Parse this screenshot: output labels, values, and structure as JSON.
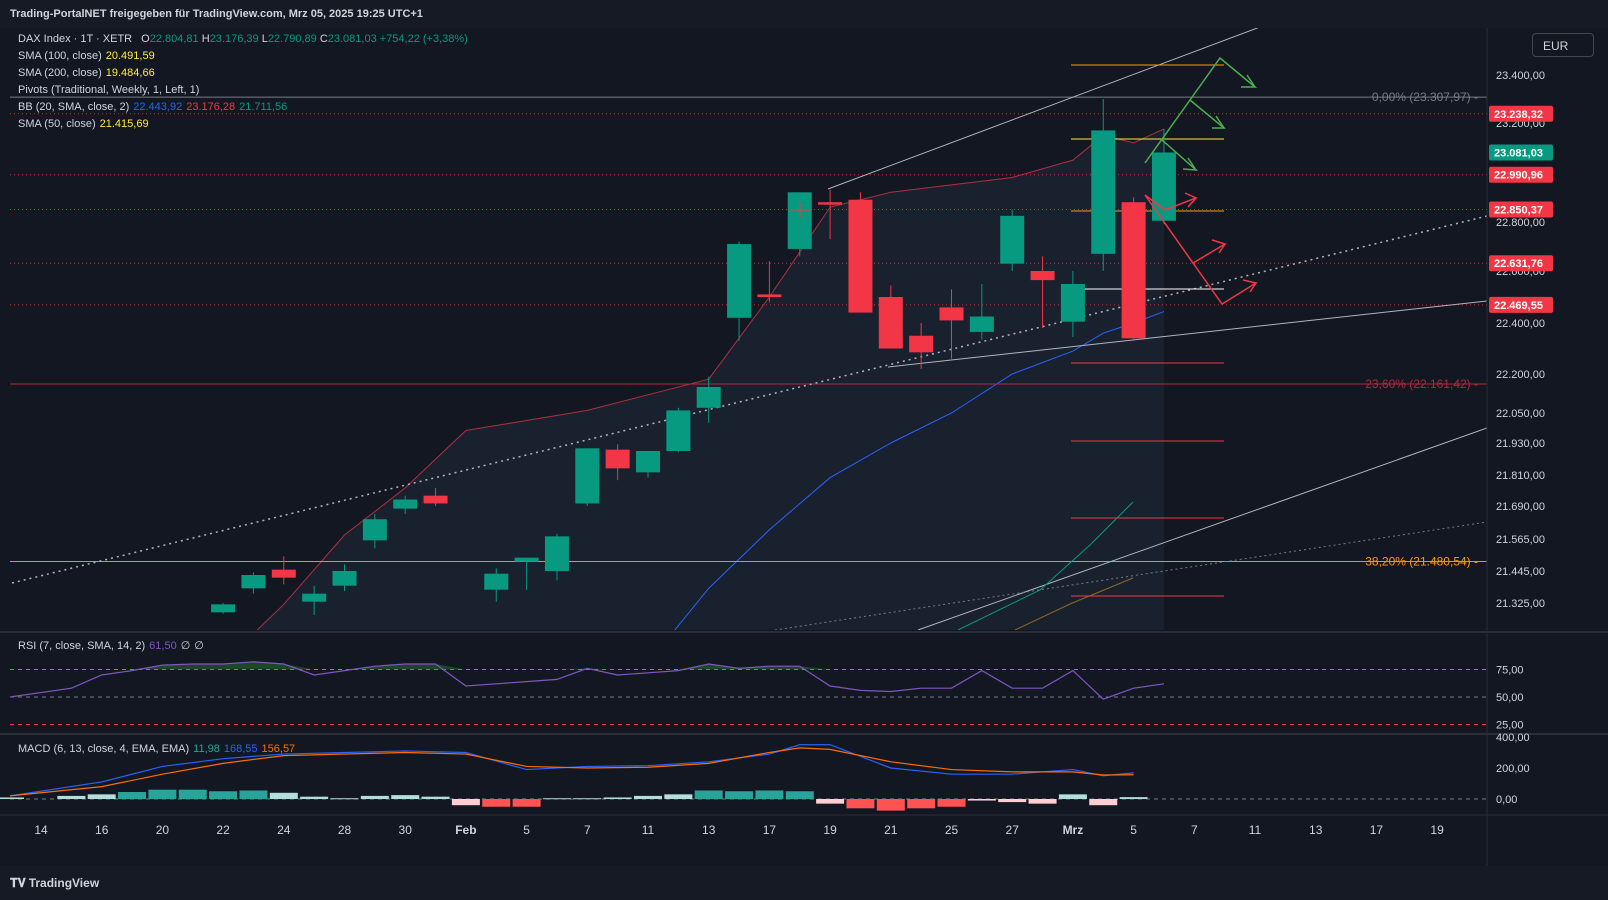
{
  "header": {
    "share_text": "Trading-PortalNET freigegeben für TradingView.com, Mrz 05, 2025 19:25 UTC+1"
  },
  "footer": {
    "brand": "TradingView"
  },
  "toolbar": {
    "currency": "EUR"
  },
  "legend": {
    "symbol": "DAX Index · 1T · XETR",
    "ohlc": {
      "o_label": "O",
      "o": "22.804,81",
      "h_label": "H",
      "h": "23.176,39",
      "l_label": "L",
      "l": "22.790,89",
      "c_label": "C",
      "c": "23.081,03",
      "change": "+754,22 (+3,38%)"
    },
    "sma100": {
      "label": "SMA (100, close)",
      "value": "20.491,59"
    },
    "sma200": {
      "label": "SMA (200, close)",
      "value": "19.484,66"
    },
    "pivots": {
      "label": "Pivots (Traditional, Weekly, 1, Left, 1)"
    },
    "bb": {
      "label": "BB (20, SMA, close, 2)",
      "basis": "22.443,92",
      "upper": "23.176,28",
      "lower": "21.711,56"
    },
    "sma50": {
      "label": "SMA (50, close)",
      "value": "21.415,69"
    }
  },
  "rsi_legend": {
    "label": "RSI (7, close, SMA, 14, 2)",
    "value": "61,50",
    "e1": "∅",
    "e2": "∅"
  },
  "macd_legend": {
    "label": "MACD (6, 13, close, 4, EMA, EMA)",
    "hist": "11,98",
    "macd": "168,55",
    "signal": "156,57"
  },
  "colors": {
    "up": "#089981",
    "down": "#f23645",
    "bg": "#131722",
    "grid": "#1e222d",
    "bb": "#b03040",
    "sma50": "#2962ff",
    "fib236": "#b2283a",
    "fib382": "#ff9800",
    "rsi": "#7e57c2",
    "macd": "#2962ff",
    "signal": "#ff6d00"
  },
  "chart_data": {
    "type": "candlestick",
    "x_ticks": [
      {
        "i": 0,
        "label": "14"
      },
      {
        "i": 2,
        "label": "16"
      },
      {
        "i": 4,
        "label": "20"
      },
      {
        "i": 6,
        "label": "22"
      },
      {
        "i": 8,
        "label": "24"
      },
      {
        "i": 10,
        "label": "28"
      },
      {
        "i": 12,
        "label": "30"
      },
      {
        "i": 14,
        "label": "Feb"
      },
      {
        "i": 16,
        "label": "5"
      },
      {
        "i": 18,
        "label": "7"
      },
      {
        "i": 20,
        "label": "11"
      },
      {
        "i": 22,
        "label": "13"
      },
      {
        "i": 24,
        "label": "17"
      },
      {
        "i": 26,
        "label": "19"
      },
      {
        "i": 28,
        "label": "21"
      },
      {
        "i": 30,
        "label": "25"
      },
      {
        "i": 32,
        "label": "27"
      },
      {
        "i": 34,
        "label": "Mrz"
      },
      {
        "i": 36,
        "label": "5"
      },
      {
        "i": 38,
        "label": "7"
      },
      {
        "i": 40,
        "label": "11"
      },
      {
        "i": 42,
        "label": "13"
      },
      {
        "i": 44,
        "label": "17"
      },
      {
        "i": 46,
        "label": "19"
      }
    ],
    "y_ticks": [
      "23.400,00",
      "23.200,00",
      "22.800,00",
      "22.600,00",
      "22.400,00",
      "22.200,00",
      "22.050,00",
      "21.930,00",
      "21.810,00",
      "21.690,00",
      "21.565,00",
      "21.445,00",
      "21.325,00"
    ],
    "y_tick_values": [
      23400,
      23200,
      22800,
      22600,
      22400,
      22200,
      22050,
      21930,
      21810,
      21690,
      21565,
      21445,
      21325
    ],
    "candles": [
      {
        "i": 6,
        "o": 21290,
        "h": 21325,
        "l": 21285,
        "c": 21320
      },
      {
        "i": 7,
        "o": 21380,
        "h": 21440,
        "l": 21360,
        "c": 21430
      },
      {
        "i": 8,
        "o": 21450,
        "h": 21500,
        "l": 21395,
        "c": 21420
      },
      {
        "i": 9,
        "o": 21330,
        "h": 21390,
        "l": 21280,
        "c": 21360
      },
      {
        "i": 10,
        "o": 21390,
        "h": 21470,
        "l": 21370,
        "c": 21445
      },
      {
        "i": 11,
        "o": 21560,
        "h": 21660,
        "l": 21530,
        "c": 21640
      },
      {
        "i": 12,
        "o": 21680,
        "h": 21730,
        "l": 21660,
        "c": 21715
      },
      {
        "i": 13,
        "o": 21730,
        "h": 21760,
        "l": 21690,
        "c": 21700
      },
      {
        "i": 15,
        "o": 21375,
        "h": 21455,
        "l": 21330,
        "c": 21435
      },
      {
        "i": 16,
        "o": 21480,
        "h": 21495,
        "l": 21375,
        "c": 21495
      },
      {
        "i": 17,
        "o": 21445,
        "h": 21585,
        "l": 21410,
        "c": 21575
      },
      {
        "i": 18,
        "o": 21700,
        "h": 21910,
        "l": 21690,
        "c": 21910
      },
      {
        "i": 19,
        "o": 21905,
        "h": 21925,
        "l": 21790,
        "c": 21835
      },
      {
        "i": 20,
        "o": 21820,
        "h": 21900,
        "l": 21800,
        "c": 21900
      },
      {
        "i": 21,
        "o": 21900,
        "h": 22070,
        "l": 21895,
        "c": 22060
      },
      {
        "i": 22,
        "o": 22070,
        "h": 22190,
        "l": 22010,
        "c": 22150
      },
      {
        "i": 23,
        "o": 22420,
        "h": 22720,
        "l": 22330,
        "c": 22710
      },
      {
        "i": 24,
        "o": 22510,
        "h": 22640,
        "l": 22480,
        "c": 22500
      },
      {
        "i": 25,
        "o": 22690,
        "h": 22920,
        "l": 22660,
        "c": 22920
      },
      {
        "i": 26,
        "o": 22880,
        "h": 22930,
        "l": 22730,
        "c": 22870
      },
      {
        "i": 27,
        "o": 22890,
        "h": 22920,
        "l": 22440,
        "c": 22440
      },
      {
        "i": 28,
        "o": 22500,
        "h": 22545,
        "l": 22300,
        "c": 22300
      },
      {
        "i": 29,
        "o": 22350,
        "h": 22400,
        "l": 22220,
        "c": 22285
      },
      {
        "i": 30,
        "o": 22460,
        "h": 22530,
        "l": 22260,
        "c": 22410
      },
      {
        "i": 31,
        "o": 22365,
        "h": 22550,
        "l": 22335,
        "c": 22425
      },
      {
        "i": 32,
        "o": 22630,
        "h": 22850,
        "l": 22600,
        "c": 22825
      },
      {
        "i": 33,
        "o": 22600,
        "h": 22660,
        "l": 22380,
        "c": 22565
      },
      {
        "i": 34,
        "o": 22405,
        "h": 22600,
        "l": 22345,
        "c": 22550
      },
      {
        "i": 35,
        "o": 22670,
        "h": 23300,
        "l": 22600,
        "c": 23170
      },
      {
        "i": 36,
        "o": 22880,
        "h": 22900,
        "l": 22330,
        "c": 22340
      },
      {
        "i": 37,
        "o": 22805,
        "h": 23176,
        "l": 22791,
        "c": 23081
      }
    ],
    "bb_upper": [
      [
        0,
        20700
      ],
      [
        2,
        20800
      ],
      [
        4,
        20950
      ],
      [
        6,
        21100
      ],
      [
        8,
        21320
      ],
      [
        10,
        21580
      ],
      [
        12,
        21760
      ],
      [
        14,
        21980
      ],
      [
        16,
        22020
      ],
      [
        18,
        22060
      ],
      [
        20,
        22120
      ],
      [
        22,
        22180
      ],
      [
        24,
        22500
      ],
      [
        26,
        22860
      ],
      [
        28,
        22920
      ],
      [
        30,
        22950
      ],
      [
        32,
        22980
      ],
      [
        34,
        23050
      ],
      [
        35,
        23150
      ],
      [
        36,
        23120
      ],
      [
        37,
        23176
      ]
    ],
    "bb_basis": [
      [
        18,
        20800
      ],
      [
        20,
        21100
      ],
      [
        22,
        21380
      ],
      [
        24,
        21600
      ],
      [
        26,
        21800
      ],
      [
        28,
        21930
      ],
      [
        30,
        22050
      ],
      [
        32,
        22200
      ],
      [
        34,
        22290
      ],
      [
        35,
        22360
      ],
      [
        36,
        22400
      ],
      [
        37,
        22444
      ]
    ],
    "price_labels": [
      {
        "text": "23.238,32",
        "value": 23238.32,
        "bg": "#f23645"
      },
      {
        "text": "23.081,03",
        "value": 23081.03,
        "bg": "#089981"
      },
      {
        "text": "22.990,96",
        "value": 22990.96,
        "bg": "#f23645"
      },
      {
        "text": "22.850,37",
        "value": 22850.37,
        "bg": "#f23645"
      },
      {
        "text": "22.631,76",
        "value": 22631.76,
        "bg": "#f23645"
      },
      {
        "text": "22.469,55",
        "value": 22469.55,
        "bg": "#f23645"
      }
    ],
    "fib_labels": [
      {
        "text": "0,00% (23.307,97)",
        "value": 23307.97,
        "color": "#787b86"
      },
      {
        "text": "23,60% (22.161,42)",
        "value": 22161.42,
        "color": "#b2283a"
      },
      {
        "text": "38,20% (21.480,54)",
        "value": 21480.54,
        "color": "#ff9800"
      }
    ],
    "rsi": {
      "y_ticks": [
        "75,00",
        "50,00",
        "25,00"
      ],
      "y_values": [
        75,
        50,
        25
      ],
      "values": [
        [
          0,
          50
        ],
        [
          1,
          58
        ],
        [
          2,
          70
        ],
        [
          3,
          74
        ],
        [
          4,
          79
        ],
        [
          5,
          80
        ],
        [
          6,
          80
        ],
        [
          7,
          82
        ],
        [
          8,
          80
        ],
        [
          9,
          70
        ],
        [
          10,
          74
        ],
        [
          11,
          78
        ],
        [
          12,
          80
        ],
        [
          13,
          80
        ],
        [
          14,
          60
        ],
        [
          15,
          62
        ],
        [
          16,
          64
        ],
        [
          17,
          66
        ],
        [
          18,
          76
        ],
        [
          19,
          70
        ],
        [
          20,
          72
        ],
        [
          21,
          74
        ],
        [
          22,
          80
        ],
        [
          23,
          76
        ],
        [
          24,
          78
        ],
        [
          25,
          78
        ],
        [
          26,
          60
        ],
        [
          27,
          56
        ],
        [
          28,
          55
        ],
        [
          29,
          58
        ],
        [
          30,
          58
        ],
        [
          31,
          74
        ],
        [
          32,
          58
        ],
        [
          33,
          58
        ],
        [
          34,
          74
        ],
        [
          35,
          48
        ],
        [
          36,
          58
        ],
        [
          37,
          62
        ]
      ]
    },
    "macd": {
      "y_ticks": [
        "400,00",
        "200,00",
        "0,00"
      ],
      "y_values": [
        400,
        200,
        0
      ],
      "macd": [
        [
          0,
          20
        ],
        [
          2,
          110
        ],
        [
          4,
          210
        ],
        [
          6,
          260
        ],
        [
          8,
          290
        ],
        [
          10,
          300
        ],
        [
          12,
          310
        ],
        [
          14,
          300
        ],
        [
          16,
          190
        ],
        [
          18,
          210
        ],
        [
          20,
          215
        ],
        [
          22,
          240
        ],
        [
          24,
          290
        ],
        [
          25,
          350
        ],
        [
          26,
          350
        ],
        [
          28,
          200
        ],
        [
          30,
          160
        ],
        [
          32,
          160
        ],
        [
          34,
          190
        ],
        [
          35,
          150
        ],
        [
          36,
          168.55
        ]
      ],
      "signal": [
        [
          0,
          20
        ],
        [
          2,
          80
        ],
        [
          4,
          160
        ],
        [
          6,
          230
        ],
        [
          8,
          280
        ],
        [
          10,
          290
        ],
        [
          12,
          300
        ],
        [
          14,
          290
        ],
        [
          16,
          210
        ],
        [
          18,
          200
        ],
        [
          20,
          205
        ],
        [
          22,
          230
        ],
        [
          24,
          300
        ],
        [
          25,
          330
        ],
        [
          26,
          320
        ],
        [
          28,
          240
        ],
        [
          30,
          190
        ],
        [
          32,
          175
        ],
        [
          34,
          175
        ],
        [
          35,
          155
        ],
        [
          36,
          156.57
        ]
      ],
      "hist": [
        [
          0,
          10
        ],
        [
          1,
          20
        ],
        [
          2,
          30
        ],
        [
          3,
          45
        ],
        [
          4,
          60
        ],
        [
          5,
          60
        ],
        [
          6,
          50
        ],
        [
          7,
          55
        ],
        [
          8,
          40
        ],
        [
          9,
          15
        ],
        [
          10,
          5
        ],
        [
          11,
          20
        ],
        [
          12,
          25
        ],
        [
          13,
          15
        ],
        [
          14,
          -40
        ],
        [
          15,
          -50
        ],
        [
          16,
          -50
        ],
        [
          17,
          5
        ],
        [
          18,
          5
        ],
        [
          19,
          10
        ],
        [
          20,
          20
        ],
        [
          21,
          30
        ],
        [
          22,
          55
        ],
        [
          23,
          50
        ],
        [
          24,
          55
        ],
        [
          25,
          50
        ],
        [
          26,
          -30
        ],
        [
          27,
          -60
        ],
        [
          28,
          -75
        ],
        [
          29,
          -60
        ],
        [
          30,
          -50
        ],
        [
          31,
          -10
        ],
        [
          32,
          -20
        ],
        [
          33,
          -30
        ],
        [
          34,
          30
        ],
        [
          35,
          -40
        ],
        [
          36,
          12
        ]
      ]
    }
  }
}
